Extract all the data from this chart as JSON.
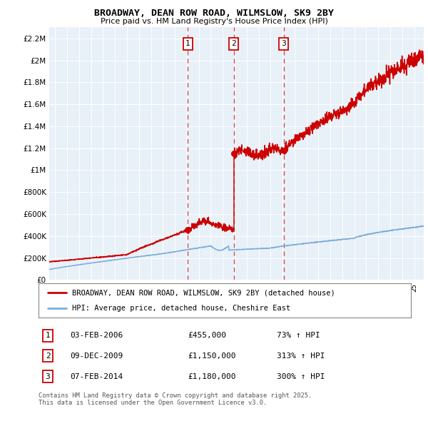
{
  "title": "BROADWAY, DEAN ROW ROAD, WILMSLOW, SK9 2BY",
  "subtitle": "Price paid vs. HM Land Registry's House Price Index (HPI)",
  "legend_line1": "BROADWAY, DEAN ROW ROAD, WILMSLOW, SK9 2BY (detached house)",
  "legend_line2": "HPI: Average price, detached house, Cheshire East",
  "footnote": "Contains HM Land Registry data © Crown copyright and database right 2025.\nThis data is licensed under the Open Government Licence v3.0.",
  "transactions": [
    {
      "num": 1,
      "date": "03-FEB-2006",
      "date_dec": 2006.09,
      "price": 455000,
      "pct": "73%",
      "dir": "↑"
    },
    {
      "num": 2,
      "date": "09-DEC-2009",
      "date_dec": 2009.94,
      "price": 1150000,
      "pct": "313%",
      "dir": "↑"
    },
    {
      "num": 3,
      "date": "07-FEB-2014",
      "date_dec": 2014.1,
      "price": 1180000,
      "pct": "300%",
      "dir": "↑"
    }
  ],
  "red_color": "#cc0000",
  "blue_color": "#7aadda",
  "dashed_color": "#cc0000",
  "background_color": "#e8f0f8",
  "grid_color": "#c8d4e0",
  "ylim": [
    0,
    2300000
  ],
  "xlim_start": 1994.5,
  "xlim_end": 2025.8,
  "yticks": [
    0,
    200000,
    400000,
    600000,
    800000,
    1000000,
    1200000,
    1400000,
    1600000,
    1800000,
    2000000,
    2200000
  ],
  "ytick_labels": [
    "£0",
    "£200K",
    "£400K",
    "£600K",
    "£800K",
    "£1M",
    "£1.2M",
    "£1.4M",
    "£1.6M",
    "£1.8M",
    "£2M",
    "£2.2M"
  ],
  "table_data": [
    [
      "1",
      "03-FEB-2006",
      "£455,000",
      "73% ↑ HPI"
    ],
    [
      "2",
      "09-DEC-2009",
      "£1,150,000",
      "313% ↑ HPI"
    ],
    [
      "3",
      "07-FEB-2014",
      "£1,180,000",
      "300% ↑ HPI"
    ]
  ]
}
